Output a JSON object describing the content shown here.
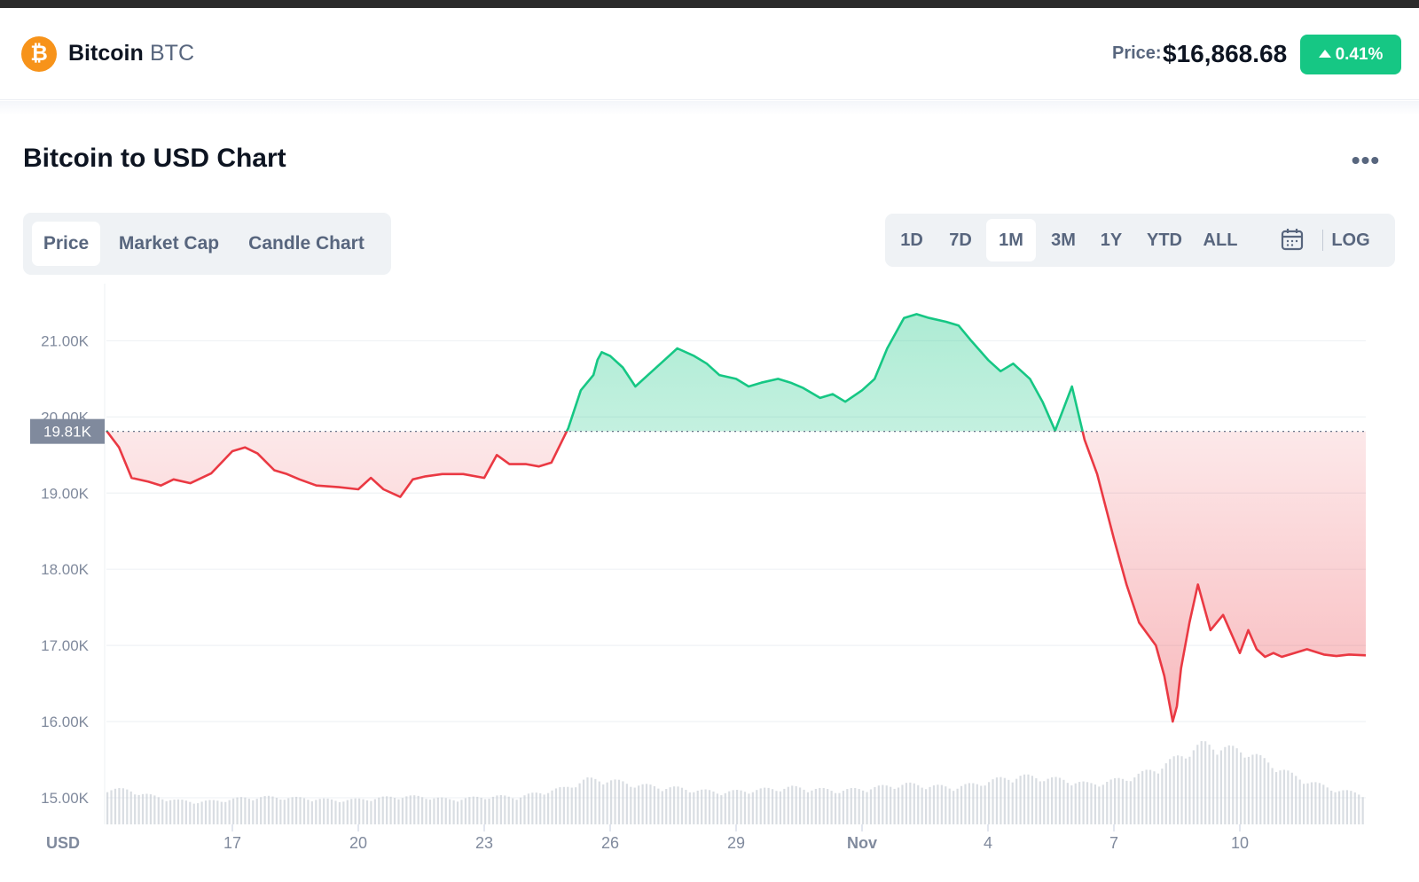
{
  "header": {
    "coin_name": "Bitcoin",
    "coin_symbol": "BTC",
    "logo_glyph": "₿",
    "price_label": "Price:",
    "price_value": "$16,868.68",
    "change": "0.41%"
  },
  "section": {
    "title": "Bitcoin to USD Chart",
    "more": "•••"
  },
  "tabs": [
    "Price",
    "Market Cap",
    "Candle Chart"
  ],
  "active_tab": "Price",
  "ranges": [
    "1D",
    "7D",
    "1M",
    "3M",
    "1Y",
    "YTD",
    "ALL"
  ],
  "active_range": "1M",
  "log_label": "LOG",
  "colors": {
    "up": "#16c784",
    "down": "#ea3943",
    "grid": "#eff2f5",
    "label": "#808a9d",
    "volume": "#c9ced6"
  },
  "chart_data": {
    "type": "area",
    "currency_label": "USD",
    "y_ticks": [
      "15.00K",
      "16.00K",
      "17.00K",
      "18.00K",
      "19.00K",
      "20.00K",
      "21.00K"
    ],
    "y_tick_values": [
      15000,
      16000,
      17000,
      18000,
      19000,
      20000,
      21000
    ],
    "ylim": [
      14650,
      21750
    ],
    "baseline_value": 19810,
    "baseline_label": "19.81K",
    "x_ticks": [
      "17",
      "20",
      "23",
      "26",
      "29",
      "Nov",
      "4",
      "7",
      "10"
    ],
    "x_range_days": [
      "Oct 14",
      "Nov 13"
    ],
    "x_tick_day_offsets": [
      3,
      6,
      9,
      12,
      15,
      18,
      21,
      24,
      27
    ],
    "series": [
      {
        "x_days": [
          0,
          0.3,
          0.6,
          1.0,
          1.3,
          1.6,
          2.0,
          2.5,
          3.0,
          3.3,
          3.6,
          4.0,
          4.3,
          4.6,
          5.0,
          5.5,
          6.0,
          6.3,
          6.6,
          7.0,
          7.3,
          7.6,
          8.0,
          8.5,
          9.0,
          9.3,
          9.6,
          10.0,
          10.3,
          10.6,
          11.0,
          11.3,
          11.6,
          11.7,
          11.8,
          12.0,
          12.3,
          12.6,
          13.0,
          13.3,
          13.6,
          14.0,
          14.3,
          14.6,
          15.0,
          15.3,
          15.6,
          16.0,
          16.3,
          16.6,
          17.0,
          17.3,
          17.6,
          18.0,
          18.3,
          18.6,
          19.0,
          19.3,
          19.6,
          20.0,
          20.3,
          20.6,
          21.0,
          21.3,
          21.6,
          22.0,
          22.3,
          22.6,
          23.0,
          23.3,
          23.6,
          24.0,
          24.3,
          24.6,
          25.0,
          25.2,
          25.4,
          25.5,
          25.6,
          25.8,
          26.0,
          26.3,
          26.6,
          27.0,
          27.2,
          27.4,
          27.6,
          27.8,
          28.0,
          28.3,
          28.6,
          29.0,
          29.3,
          29.6,
          30.0
        ],
        "values": [
          19820,
          19600,
          19200,
          19150,
          19100,
          19180,
          19130,
          19260,
          19550,
          19600,
          19520,
          19300,
          19250,
          19180,
          19100,
          19080,
          19050,
          19200,
          19050,
          18950,
          19180,
          19220,
          19250,
          19250,
          19200,
          19500,
          19380,
          19380,
          19350,
          19400,
          19850,
          20350,
          20550,
          20750,
          20850,
          20800,
          20650,
          20400,
          20600,
          20750,
          20900,
          20800,
          20700,
          20550,
          20500,
          20400,
          20450,
          20500,
          20450,
          20380,
          20250,
          20300,
          20200,
          20350,
          20500,
          20900,
          21300,
          21350,
          21300,
          21250,
          21200,
          21000,
          20750,
          20600,
          20700,
          20500,
          20200,
          19820,
          20400,
          19700,
          19250,
          18400,
          17800,
          17300,
          17000,
          16600,
          16000,
          16200,
          16700,
          17300,
          17800,
          17200,
          17400,
          16900,
          17200,
          16950,
          16850,
          16900,
          16850,
          16900,
          16950,
          16880,
          16860,
          16880,
          16870
        ]
      }
    ],
    "volume_relative": [
      0.45,
      0.42,
      0.35,
      0.3,
      0.28,
      0.3,
      0.33,
      0.34,
      0.33,
      0.32,
      0.3,
      0.31,
      0.33,
      0.35,
      0.34,
      0.31,
      0.33,
      0.35,
      0.34,
      0.4,
      0.45,
      0.56,
      0.55,
      0.5,
      0.47,
      0.45,
      0.42,
      0.4,
      0.42,
      0.44,
      0.46,
      0.44,
      0.42,
      0.44,
      0.47,
      0.5,
      0.48,
      0.46,
      0.5,
      0.56,
      0.6,
      0.58,
      0.55,
      0.5,
      0.54,
      0.6,
      0.7,
      0.85,
      1.0,
      0.95,
      0.9,
      0.75,
      0.6,
      0.5,
      0.42,
      0.38
    ]
  }
}
